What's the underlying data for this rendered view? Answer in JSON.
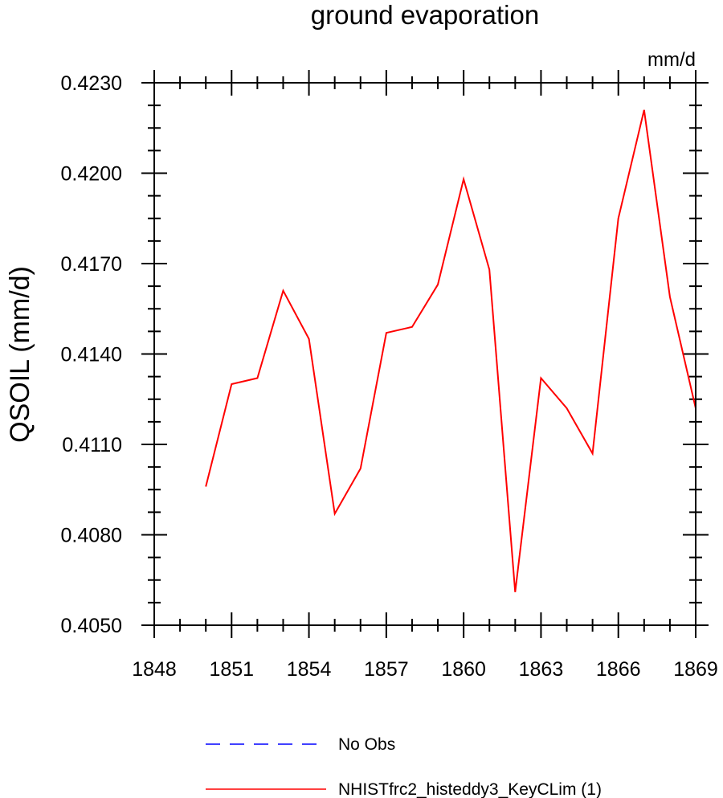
{
  "chart_data": {
    "type": "line",
    "title": "ground evaporation",
    "units_label": "mm/d",
    "ylabel": "QSOIL  (mm/d)",
    "xlabel": "",
    "xlim": [
      1848,
      1869
    ],
    "ylim": [
      0.405,
      0.423
    ],
    "x_ticks": [
      1848,
      1851,
      1854,
      1857,
      1860,
      1863,
      1866,
      1869
    ],
    "x_tick_labels": [
      "1848",
      "1851",
      "1854",
      "1857",
      "1860",
      "1863",
      "1866",
      "1869"
    ],
    "y_ticks": [
      0.405,
      0.408,
      0.411,
      0.414,
      0.417,
      0.42,
      0.423
    ],
    "y_tick_labels": [
      "0.4050",
      "0.4080",
      "0.4110",
      "0.4140",
      "0.4170",
      "0.4200",
      "0.4230"
    ],
    "grid": false,
    "legend_position": "bottom",
    "series": [
      {
        "name": "No Obs",
        "color": "#0000ff",
        "dash": "dashed",
        "x": [],
        "y": []
      },
      {
        "name": "NHISTfrc2_histeddy3_KeyCLim (1)",
        "color": "#ff0000",
        "dash": "solid",
        "x": [
          1850,
          1851,
          1852,
          1853,
          1854,
          1855,
          1856,
          1857,
          1858,
          1859,
          1860,
          1861,
          1862,
          1863,
          1864,
          1865,
          1866,
          1867,
          1868,
          1869
        ],
        "y": [
          0.4096,
          0.413,
          0.4132,
          0.4161,
          0.4145,
          0.4087,
          0.4102,
          0.4147,
          0.4149,
          0.4163,
          0.4198,
          0.4168,
          0.4061,
          0.4132,
          0.4122,
          0.4107,
          0.4185,
          0.4221,
          0.4159,
          0.4122
        ]
      }
    ]
  }
}
